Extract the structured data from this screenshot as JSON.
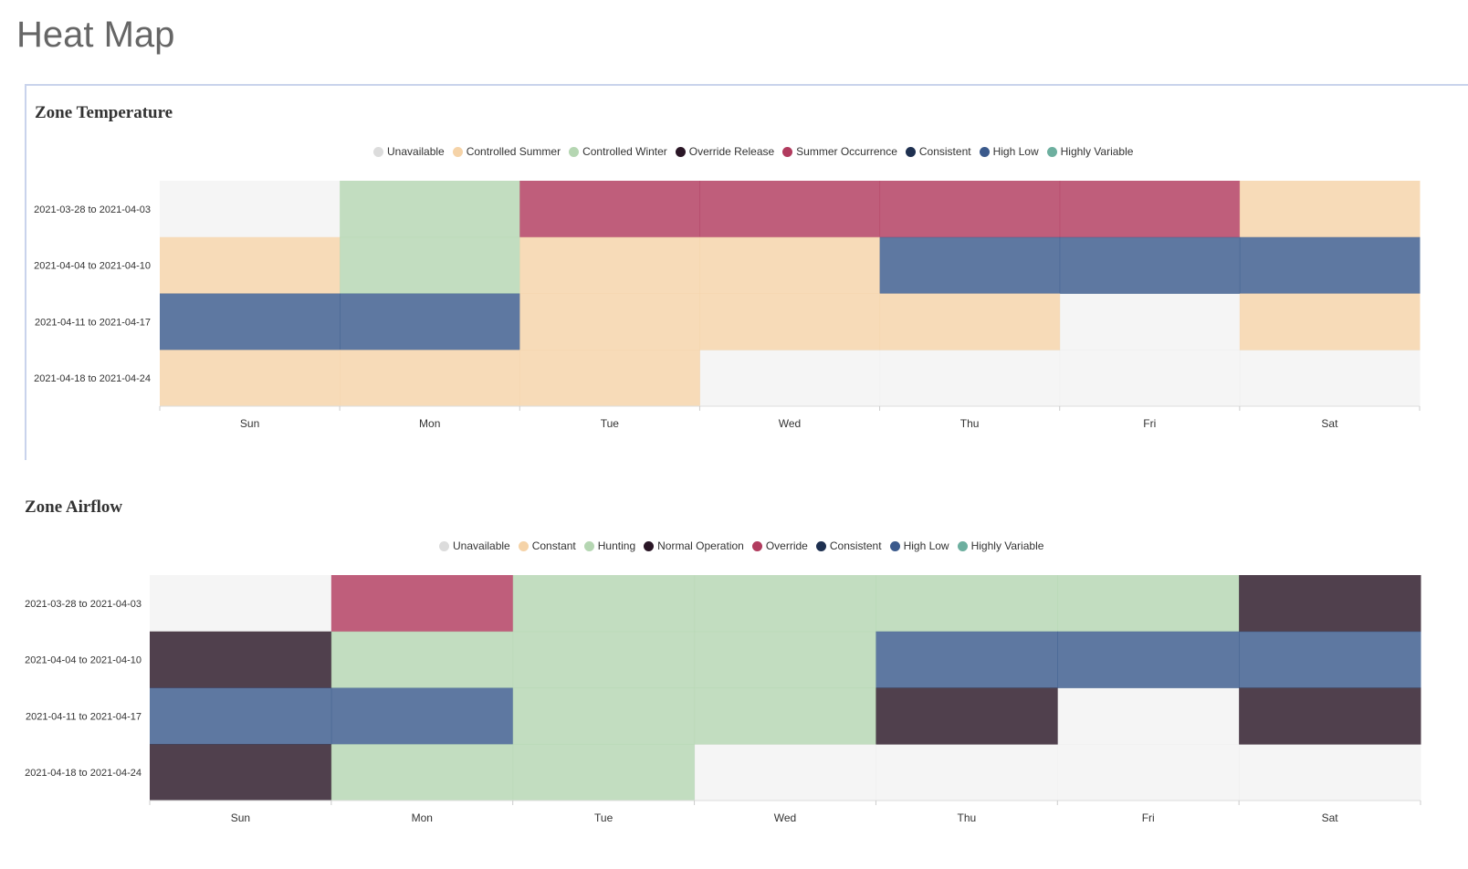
{
  "page": {
    "title": "Heat Map"
  },
  "chart_data": [
    {
      "type": "heatmap",
      "title": "Zone Temperature",
      "legend": [
        {
          "label": "Unavailable",
          "color": "#dcdcdc"
        },
        {
          "label": "Controlled Summer",
          "color": "#f5d3a8"
        },
        {
          "label": "Controlled Winter",
          "color": "#b5d6b2"
        },
        {
          "label": "Override Release",
          "color": "#2a1626"
        },
        {
          "label": "Summer Occurrence",
          "color": "#b13b5e"
        },
        {
          "label": "Consistent",
          "color": "#1e3050"
        },
        {
          "label": "High Low",
          "color": "#3b5a8c"
        },
        {
          "label": "Highly Variable",
          "color": "#6daf9f"
        }
      ],
      "x_categories": [
        "Sun",
        "Mon",
        "Tue",
        "Wed",
        "Thu",
        "Fri",
        "Sat"
      ],
      "y_categories": [
        "2021-03-28 to 2021-04-03",
        "2021-04-04 to 2021-04-10",
        "2021-04-11 to 2021-04-17",
        "2021-04-18 to 2021-04-24"
      ],
      "cells": [
        [
          "Unavailable",
          "Controlled Winter",
          "Summer Occurrence",
          "Summer Occurrence",
          "Summer Occurrence",
          "Summer Occurrence",
          "Controlled Summer"
        ],
        [
          "Controlled Summer",
          "Controlled Winter",
          "Controlled Summer",
          "Controlled Summer",
          "High Low",
          "High Low",
          "High Low"
        ],
        [
          "High Low",
          "High Low",
          "Controlled Summer",
          "Controlled Summer",
          "Controlled Summer",
          "Unavailable",
          "Controlled Summer"
        ],
        [
          "Controlled Summer",
          "Controlled Summer",
          "Controlled Summer",
          "Unavailable",
          "Unavailable",
          "Unavailable",
          "Unavailable"
        ]
      ]
    },
    {
      "type": "heatmap",
      "title": "Zone Airflow",
      "legend": [
        {
          "label": "Unavailable",
          "color": "#dcdcdc"
        },
        {
          "label": "Constant",
          "color": "#f5d3a8"
        },
        {
          "label": "Hunting",
          "color": "#b5d6b2"
        },
        {
          "label": "Normal Operation",
          "color": "#2a1626"
        },
        {
          "label": "Override",
          "color": "#b13b5e"
        },
        {
          "label": "Consistent",
          "color": "#1e3050"
        },
        {
          "label": "High Low",
          "color": "#3b5a8c"
        },
        {
          "label": "Highly Variable",
          "color": "#6daf9f"
        }
      ],
      "x_categories": [
        "Sun",
        "Mon",
        "Tue",
        "Wed",
        "Thu",
        "Fri",
        "Sat"
      ],
      "y_categories": [
        "2021-03-28 to 2021-04-03",
        "2021-04-04 to 2021-04-10",
        "2021-04-11 to 2021-04-17",
        "2021-04-18 to 2021-04-24"
      ],
      "cells": [
        [
          "Unavailable",
          "Override",
          "Hunting",
          "Hunting",
          "Hunting",
          "Hunting",
          "Normal Operation"
        ],
        [
          "Normal Operation",
          "Hunting",
          "Hunting",
          "Hunting",
          "High Low",
          "High Low",
          "High Low"
        ],
        [
          "High Low",
          "High Low",
          "Hunting",
          "Hunting",
          "Normal Operation",
          "Unavailable",
          "Normal Operation"
        ],
        [
          "Normal Operation",
          "Hunting",
          "Hunting",
          "Unavailable",
          "Unavailable",
          "Unavailable",
          "Unavailable"
        ]
      ]
    }
  ]
}
